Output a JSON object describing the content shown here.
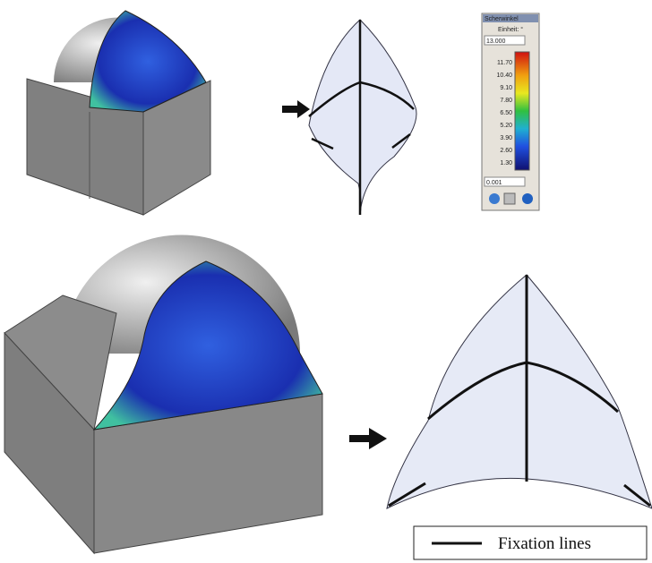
{
  "colorbar": {
    "title": "Scherwinkel",
    "unit": "Einheit: °",
    "max": "13.000",
    "labels": [
      "11.70",
      "10.40",
      "9.10",
      "7.80",
      "6.50",
      "5.20",
      "3.90",
      "2.60",
      "1.30"
    ],
    "min": "0.001"
  },
  "legend": {
    "label": "Fixation lines"
  }
}
